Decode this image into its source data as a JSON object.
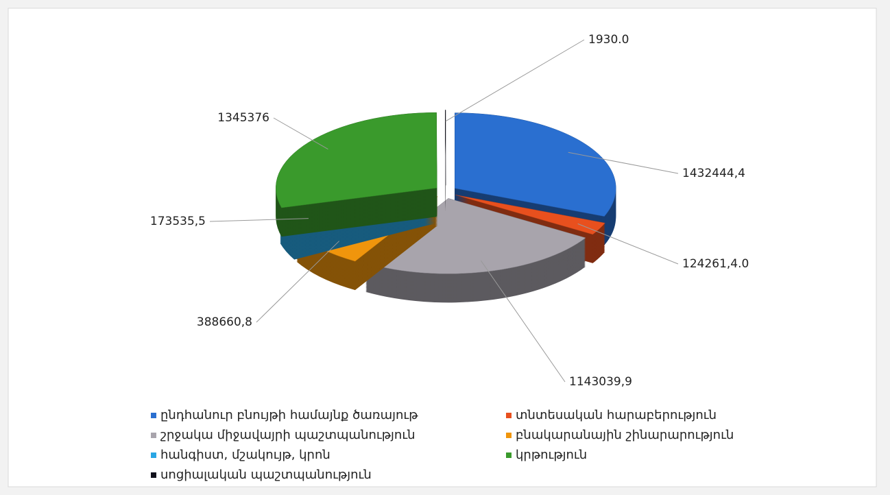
{
  "chart_data": {
    "type": "pie",
    "categories": [
      "ընդհանուր բնույթի համայնք ծառայութ",
      "տնտեսական հարաբերություն",
      "շրջակա միջավայրի պաշտպանություն",
      "բնակարանային շինարարություն",
      "հանգիստ, մշակույթ, կրոն",
      "կրթություն",
      "սոցիալական պաշտպանություն"
    ],
    "values": [
      1432444.4,
      124261.4,
      1143039.9,
      388660.8,
      173535.5,
      1345376,
      1930
    ],
    "value_labels": [
      "1432444,4",
      "124261,4.0",
      "1143039,9",
      "388660,8",
      "173535,5",
      "1345376",
      "1930.0"
    ],
    "colors": [
      "#2a6fd0",
      "#e8501e",
      "#a8a4ac",
      "#f0950c",
      "#2aa6e4",
      "#3a9a2c",
      "#10101c"
    ],
    "legend": "bottom"
  }
}
